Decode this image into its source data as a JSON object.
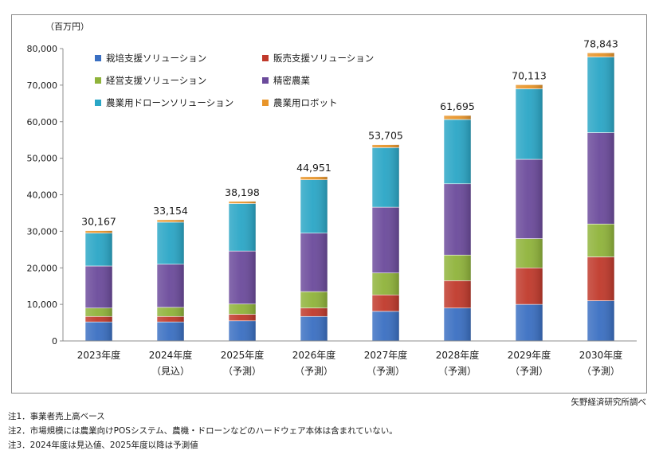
{
  "chart_data": {
    "type": "bar",
    "stacked": true,
    "unit_label": "（百万円）",
    "categories": [
      {
        "year": "2023年度",
        "sub": ""
      },
      {
        "year": "2024年度",
        "sub": "（見込）"
      },
      {
        "year": "2025年度",
        "sub": "（予測）"
      },
      {
        "year": "2026年度",
        "sub": "（予測）"
      },
      {
        "year": "2027年度",
        "sub": "（予測）"
      },
      {
        "year": "2028年度",
        "sub": "（予測）"
      },
      {
        "year": "2029年度",
        "sub": "（予測）"
      },
      {
        "year": "2030年度",
        "sub": "（予測）"
      }
    ],
    "totals": [
      "30,167",
      "33,154",
      "38,198",
      "44,951",
      "53,705",
      "61,695",
      "70,113",
      "78,843"
    ],
    "series": [
      {
        "name": "栽培支援ソリューション",
        "color": "#3a6fc2",
        "values": [
          5200,
          5200,
          5500,
          6700,
          8100,
          9000,
          10000,
          11000
        ]
      },
      {
        "name": "販売支援ソリューション",
        "color": "#c0392b",
        "values": [
          1500,
          1500,
          1800,
          2300,
          4500,
          7500,
          10000,
          12000
        ]
      },
      {
        "name": "経営支援ソリューション",
        "color": "#8fb33a",
        "values": [
          2300,
          2500,
          2800,
          4500,
          6000,
          7000,
          8000,
          9000
        ]
      },
      {
        "name": "精密農業",
        "color": "#6b4a9b",
        "values": [
          11500,
          11800,
          14500,
          16000,
          18000,
          19500,
          21700,
          25000
        ]
      },
      {
        "name": "農業用ドローンソリューション",
        "color": "#2aa6c6",
        "values": [
          9000,
          11500,
          13000,
          14600,
          16300,
          17600,
          19300,
          20700
        ]
      },
      {
        "name": "農業用ロボット",
        "color": "#e8952a",
        "values": [
          667,
          654,
          598,
          851,
          805,
          1095,
          1113,
          1143
        ]
      }
    ],
    "yaxis": {
      "min": 0,
      "max": 80000,
      "step": 10000,
      "ticks": [
        "0",
        "10,000",
        "20,000",
        "30,000",
        "40,000",
        "50,000",
        "60,000",
        "70,000",
        "80,000"
      ]
    },
    "legend_position": "top-left"
  },
  "source": "矢野経済研究所調べ",
  "notes": [
    "注1．事業者売上高ベース",
    "注2．市場規模には農業向けPOSシステム、農機・ドローンなどのハードウェア本体は含まれていない。",
    "注3．2024年度は見込値、2025年度以降は予測値"
  ]
}
